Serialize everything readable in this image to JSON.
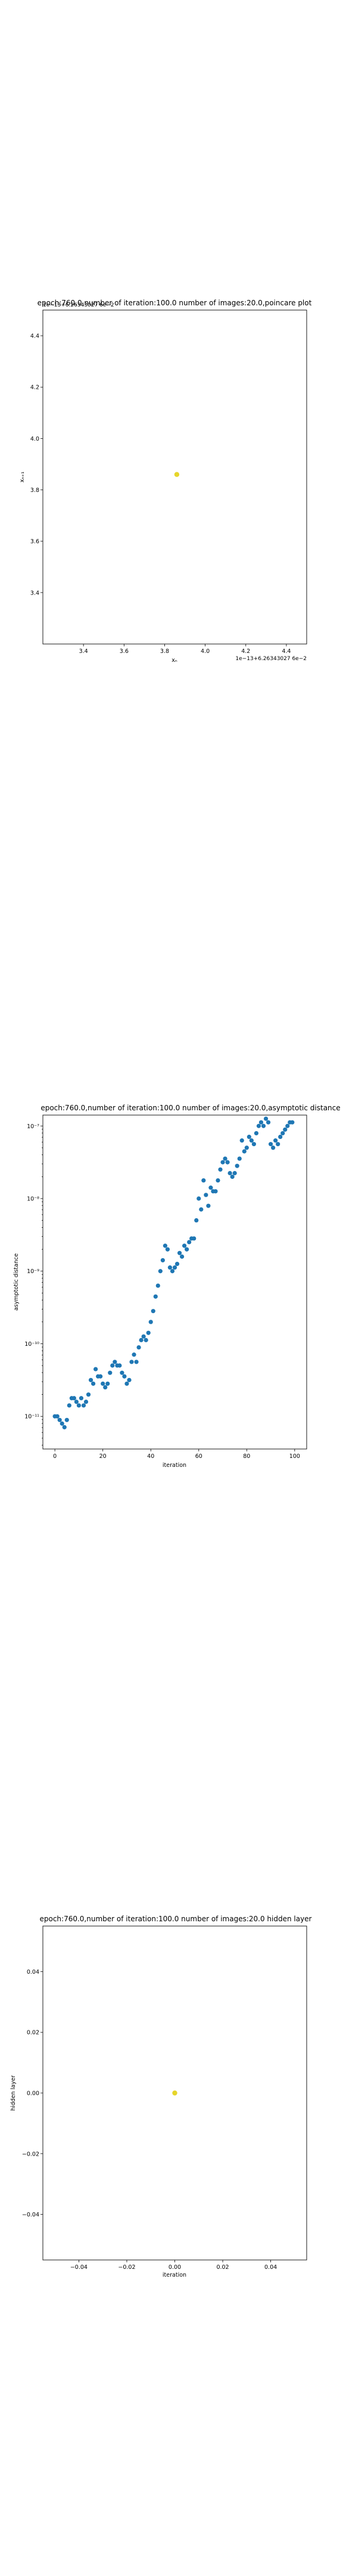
{
  "chart_data": [
    {
      "type": "scatter",
      "title": "epoch:760.0,number of iteration:100.0 number of images:20.0,poincare plot",
      "xlabel": "xₙ",
      "ylabel": "xₙ₊₁",
      "x_offset_label": "1e−13+6.26343027 6e−2",
      "y_offset_label": "1e−13+6.26343027 6e−2",
      "xlim": [
        3.2,
        4.5
      ],
      "ylim": [
        3.2,
        4.5
      ],
      "xticks": [
        3.4,
        3.6,
        3.8,
        4.0,
        4.2,
        4.4
      ],
      "xtick_labels": [
        "3.4",
        "3.6",
        "3.8",
        "4.0",
        "4.2",
        "4.4"
      ],
      "yticks": [
        3.4,
        3.6,
        3.8,
        4.0,
        4.2,
        4.4
      ],
      "ytick_labels": [
        "3.4",
        "3.6",
        "3.8",
        "4.0",
        "4.2",
        "4.4"
      ],
      "points": [
        {
          "x": 3.86,
          "y": 3.86
        }
      ],
      "color": "#e6d52a"
    },
    {
      "type": "scatter",
      "title": "epoch:760.0,number of iteration:100.0  number of images:20.0,asymptotic distance",
      "xlabel": "iteration",
      "ylabel": "asymptotic distance",
      "yscale": "log",
      "xlim": [
        -5,
        105
      ],
      "ylim_exp": [
        -11.45,
        -6.85
      ],
      "xticks": [
        0,
        20,
        40,
        60,
        80,
        100
      ],
      "xtick_labels": [
        "0",
        "20",
        "40",
        "60",
        "80",
        "100"
      ],
      "yticks_exp": [
        -11,
        -10,
        -9,
        -8,
        -7
      ],
      "ytick_labels": [
        "10⁻¹¹",
        "10⁻¹⁰",
        "10⁻⁹",
        "10⁻⁸",
        "10⁻⁷"
      ],
      "x": [
        0,
        1,
        2,
        3,
        4,
        5,
        6,
        7,
        8,
        9,
        10,
        11,
        12,
        13,
        14,
        15,
        16,
        17,
        18,
        19,
        20,
        21,
        22,
        23,
        24,
        25,
        26,
        27,
        28,
        29,
        30,
        31,
        32,
        33,
        34,
        35,
        36,
        37,
        38,
        39,
        40,
        41,
        42,
        43,
        44,
        45,
        46,
        47,
        48,
        49,
        50,
        51,
        52,
        53,
        54,
        55,
        56,
        57,
        58,
        59,
        60,
        61,
        62,
        63,
        64,
        65,
        66,
        67,
        68,
        69,
        70,
        71,
        72,
        73,
        74,
        75,
        76,
        77,
        78,
        79,
        80,
        81,
        82,
        83,
        84,
        85,
        86,
        87,
        88,
        89,
        90,
        91,
        92,
        93,
        94,
        95,
        96,
        97,
        98,
        99
      ],
      "log10_y": [
        -11.0,
        -11.0,
        -11.05,
        -11.1,
        -11.15,
        -11.05,
        -10.85,
        -10.75,
        -10.75,
        -10.8,
        -10.85,
        -10.75,
        -10.85,
        -10.8,
        -10.7,
        -10.5,
        -10.55,
        -10.35,
        -10.45,
        -10.45,
        -10.55,
        -10.6,
        -10.55,
        -10.4,
        -10.3,
        -10.25,
        -10.3,
        -10.3,
        -10.4,
        -10.45,
        -10.55,
        -10.5,
        -10.25,
        -10.15,
        -10.25,
        -10.05,
        -9.95,
        -9.9,
        -9.95,
        -9.85,
        -9.7,
        -9.55,
        -9.35,
        -9.2,
        -9.0,
        -8.85,
        -8.65,
        -8.7,
        -8.95,
        -9.0,
        -8.95,
        -8.9,
        -8.75,
        -8.8,
        -8.65,
        -8.7,
        -8.6,
        -8.55,
        -8.55,
        -8.3,
        -8.0,
        -8.15,
        -7.75,
        -7.95,
        -8.1,
        -7.85,
        -7.9,
        -7.9,
        -7.75,
        -7.6,
        -7.5,
        -7.45,
        -7.5,
        -7.65,
        -7.7,
        -7.65,
        -7.55,
        -7.45,
        -7.2,
        -7.35,
        -7.3,
        -7.15,
        -7.2,
        -7.25,
        -7.1,
        -7.0,
        -6.95,
        -7.0,
        -6.9,
        -6.95,
        -7.25,
        -7.3,
        -7.2,
        -7.25,
        -7.15,
        -7.1,
        -7.05,
        -7.0,
        -6.95,
        -6.95
      ],
      "color": "#1f77b4"
    },
    {
      "type": "scatter",
      "title": "epoch:760.0,number of iteration:100.0  number of images:20.0 hidden layer",
      "xlabel": "iteration",
      "ylabel": "hidden layer",
      "xlim": [
        -0.055,
        0.055
      ],
      "ylim": [
        -0.055,
        0.055
      ],
      "xticks": [
        -0.04,
        -0.02,
        0.0,
        0.02,
        0.04
      ],
      "xtick_labels": [
        "−0.04",
        "−0.02",
        "0.00",
        "0.02",
        "0.04"
      ],
      "yticks": [
        -0.04,
        -0.02,
        0.0,
        0.02,
        0.04
      ],
      "ytick_labels": [
        "−0.04",
        "−0.02",
        "0.00",
        "0.02",
        "0.04"
      ],
      "points": [
        {
          "x": 0.0,
          "y": 0.0
        }
      ],
      "color": "#e6d52a"
    }
  ]
}
